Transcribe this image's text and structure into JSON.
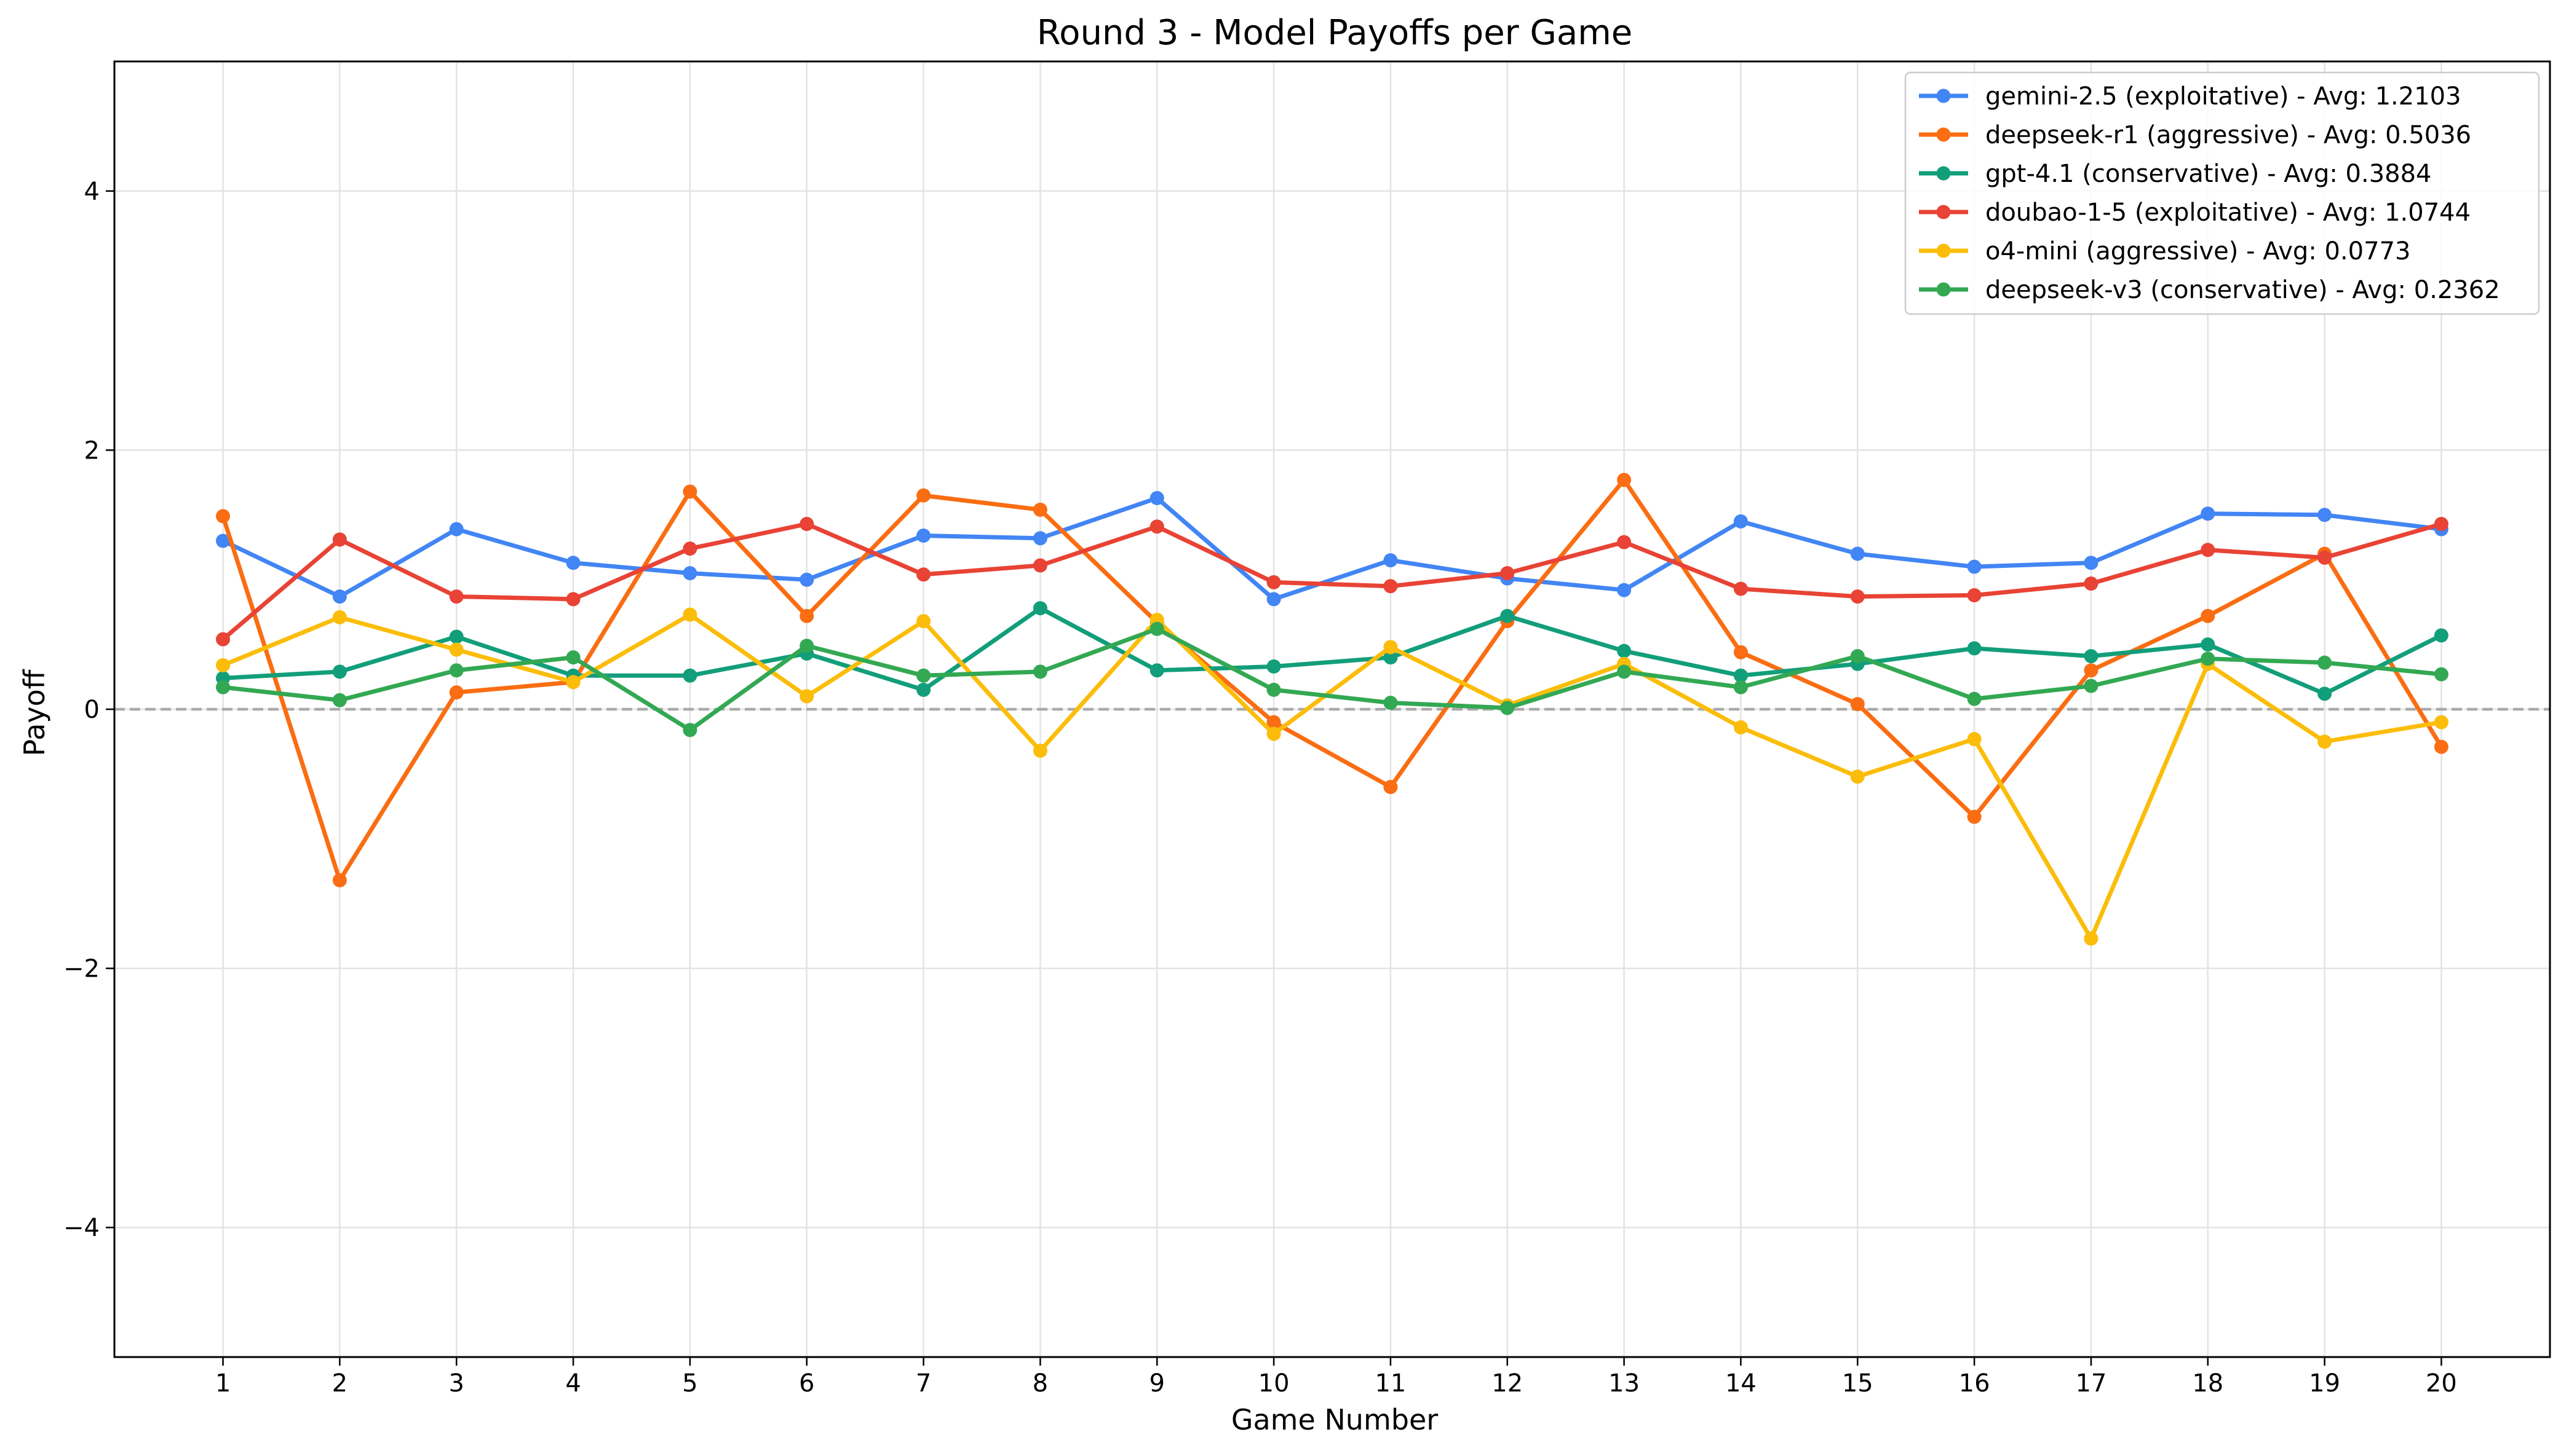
{
  "chart_data": {
    "type": "line",
    "title": "Round 3 - Model Payoffs per Game",
    "xlabel": "Game Number",
    "ylabel": "Payoff",
    "x": [
      1,
      2,
      3,
      4,
      5,
      6,
      7,
      8,
      9,
      10,
      11,
      12,
      13,
      14,
      15,
      16,
      17,
      18,
      19,
      20
    ],
    "xlim": [
      0.07,
      20.93
    ],
    "ylim": [
      -5,
      5
    ],
    "yticks": [
      -4,
      -2,
      0,
      2,
      4
    ],
    "y_tick_labels": [
      "−4",
      "−2",
      "0",
      "2",
      "4"
    ],
    "grid": true,
    "reference_line": {
      "y": 0,
      "style": "dashed",
      "color": "#aaaaaa"
    },
    "legend_position": "top-right",
    "series": [
      {
        "name": "gemini-2.5 (exploitative) - Avg: 1.2103",
        "color": "#4285f4",
        "values": [
          1.3,
          0.87,
          1.39,
          1.13,
          1.05,
          1.0,
          1.34,
          1.32,
          1.63,
          0.85,
          1.15,
          1.01,
          0.92,
          1.45,
          1.2,
          1.1,
          1.13,
          1.51,
          1.5,
          1.39
        ]
      },
      {
        "name": "deepseek-r1 (aggressive) - Avg: 0.5036",
        "color": "#fa6d12",
        "values": [
          1.49,
          -1.32,
          0.13,
          0.21,
          1.68,
          0.72,
          1.65,
          1.54,
          0.67,
          -0.1,
          -0.6,
          0.68,
          1.77,
          0.44,
          0.04,
          -0.83,
          0.3,
          0.72,
          1.2,
          -0.29
        ]
      },
      {
        "name": "gpt-4.1 (conservative) - Avg: 0.3884",
        "color": "#129e7a",
        "values": [
          0.24,
          0.29,
          0.56,
          0.26,
          0.26,
          0.43,
          0.15,
          0.78,
          0.3,
          0.33,
          0.4,
          0.72,
          0.45,
          0.26,
          0.35,
          0.47,
          0.41,
          0.5,
          0.12,
          0.57
        ]
      },
      {
        "name": "doubao-1-5 (exploitative) - Avg: 1.0744",
        "color": "#e84335",
        "values": [
          0.54,
          1.31,
          0.87,
          0.85,
          1.24,
          1.43,
          1.04,
          1.11,
          1.41,
          0.98,
          0.95,
          1.05,
          1.29,
          0.93,
          0.87,
          0.88,
          0.97,
          1.23,
          1.17,
          1.43
        ]
      },
      {
        "name": "o4-mini (aggressive) - Avg: 0.0773",
        "color": "#fbbd0a",
        "values": [
          0.34,
          0.71,
          0.46,
          0.21,
          0.73,
          0.1,
          0.68,
          -0.32,
          0.69,
          -0.19,
          0.48,
          0.03,
          0.35,
          -0.14,
          -0.52,
          -0.23,
          -1.77,
          0.35,
          -0.25,
          -0.1
        ]
      },
      {
        "name": "deepseek-v3 (conservative) - Avg: 0.2362",
        "color": "#33a853",
        "values": [
          0.17,
          0.07,
          0.3,
          0.4,
          -0.16,
          0.49,
          0.26,
          0.29,
          0.62,
          0.15,
          0.05,
          0.01,
          0.29,
          0.17,
          0.41,
          0.08,
          0.18,
          0.39,
          0.36,
          0.27
        ]
      }
    ]
  }
}
